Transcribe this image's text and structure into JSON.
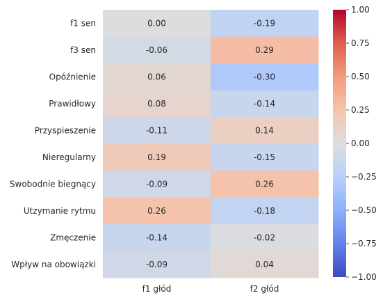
{
  "chart_data": {
    "type": "heatmap",
    "title": "",
    "xlabel": "",
    "ylabel": "",
    "columns": [
      "f1 głód",
      "f2 głód"
    ],
    "rows": [
      "f1 sen",
      "f3 sen",
      "Opóźnienie",
      "Prawidłowy",
      "Przyspieszenie",
      "Nieregularny",
      "Swobodnie biegnący",
      "Utzymanie rytmu",
      "Zmęczenie",
      "Wpływ na obowiązki"
    ],
    "values": [
      [
        0.0,
        -0.19
      ],
      [
        -0.06,
        0.29
      ],
      [
        0.06,
        -0.3
      ],
      [
        0.08,
        -0.14
      ],
      [
        -0.11,
        0.14
      ],
      [
        0.19,
        -0.15
      ],
      [
        -0.09,
        0.26
      ],
      [
        0.26,
        -0.18
      ],
      [
        -0.14,
        -0.02
      ],
      [
        -0.09,
        0.04
      ]
    ],
    "value_labels": [
      [
        "0.00",
        "-0.19"
      ],
      [
        "-0.06",
        "0.29"
      ],
      [
        "0.06",
        "-0.30"
      ],
      [
        "0.08",
        "-0.14"
      ],
      [
        "-0.11",
        "0.14"
      ],
      [
        "0.19",
        "-0.15"
      ],
      [
        "-0.09",
        "0.26"
      ],
      [
        "0.26",
        "-0.18"
      ],
      [
        "-0.14",
        "-0.02"
      ],
      [
        "-0.09",
        "0.04"
      ]
    ],
    "colormap": "coolwarm",
    "vmin": -1.0,
    "vmax": 1.0,
    "colorbar": {
      "ticks": [
        1.0,
        0.75,
        0.5,
        0.25,
        0.0,
        -0.25,
        -0.5,
        -0.75,
        -1.0
      ],
      "tick_labels": [
        "1.00",
        "0.75",
        "0.50",
        "0.25",
        "0.00",
        "−0.25",
        "−0.50",
        "−0.75",
        "−1.00"
      ]
    },
    "grid": false,
    "legend": "colorbar-right"
  }
}
